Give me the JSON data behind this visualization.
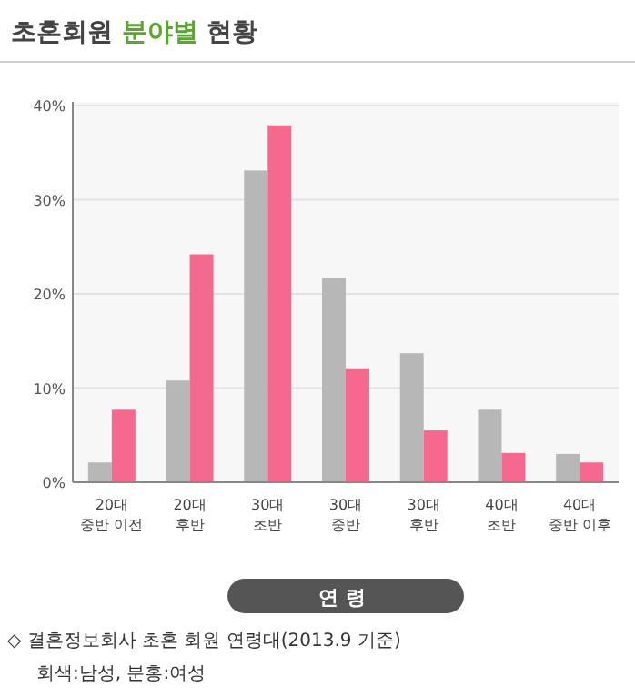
{
  "chart_data": {
    "type": "bar",
    "title": "초혼회원 **분야별** 현황",
    "xlabel": "연령",
    "categories": [
      "20대\n중반 이전",
      "20대\n후반",
      "30대\n초반",
      "30대\n중반",
      "30대\n후반",
      "40대\n초반",
      "40대\n중반 이후"
    ],
    "series": [
      {
        "color": "#b7b7b7",
        "values": [
          2.1,
          10.8,
          33.1,
          21.7,
          13.7,
          7.7,
          3.0
        ]
      },
      {
        "color": "#f5698e",
        "values": [
          7.7,
          24.2,
          37.9,
          12.1,
          5.5,
          3.1,
          2.1
        ]
      }
    ],
    "ylim": [
      0,
      40
    ],
    "yticks": [
      {
        "value": 0,
        "label": "0%"
      },
      {
        "value": 10,
        "label": "10%"
      },
      {
        "value": 20,
        "label": "20%"
      },
      {
        "value": 30,
        "label": "30%"
      },
      {
        "value": 40,
        "label": "40%"
      }
    ],
    "grid": "y",
    "annotations": [
      "◇ 결혼정보회사 초혼 회원 연령대(2013.9 기준)",
      "회색:남성, 분홍:여성"
    ]
  }
}
